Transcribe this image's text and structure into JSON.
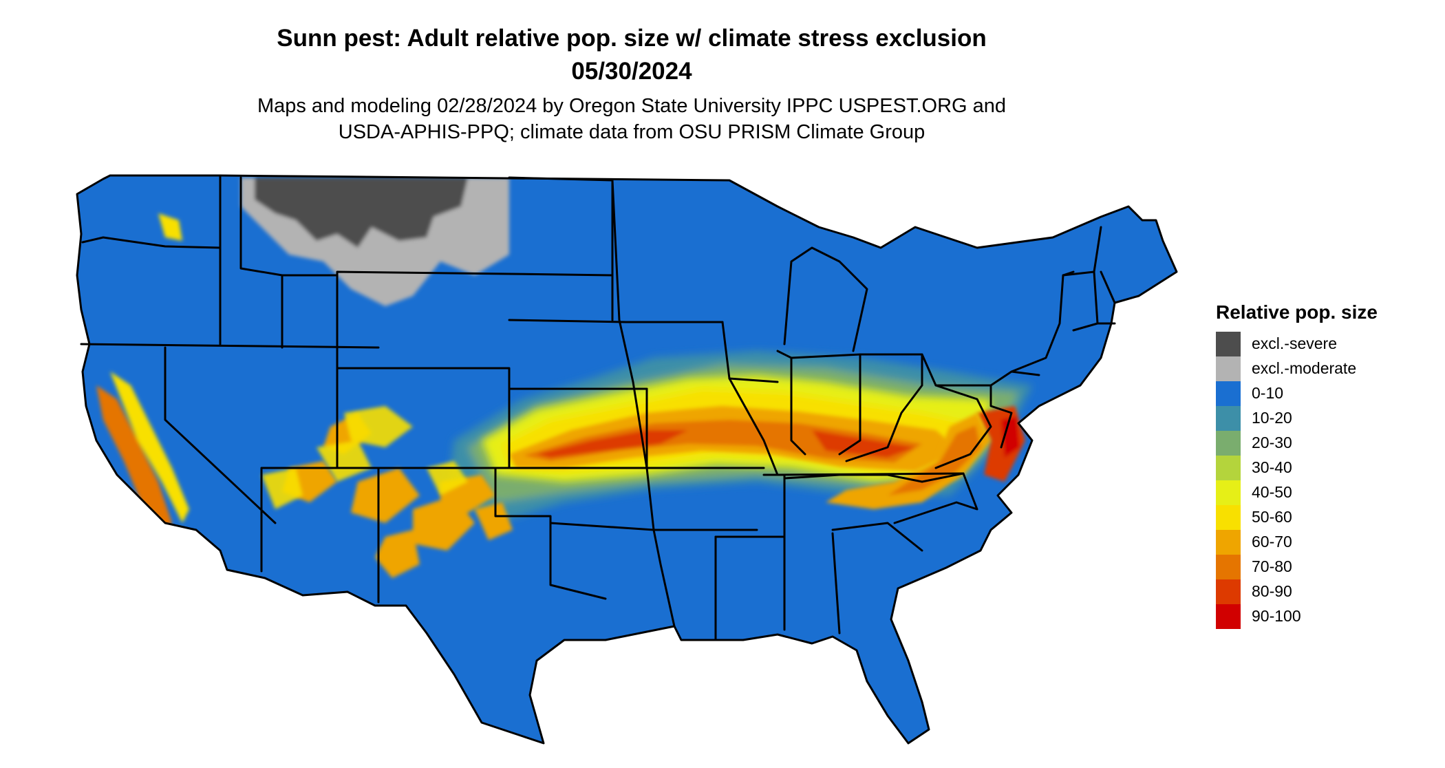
{
  "title": {
    "line1": "Sunn pest: Adult relative pop. size w/ climate stress exclusion",
    "line2": "05/30/2024"
  },
  "subtitle": {
    "line1": "Maps and modeling 02/28/2024 by Oregon State University IPPC USPEST.ORG and",
    "line2": "USDA-APHIS-PPQ; climate data from OSU PRISM Climate Group"
  },
  "legend": {
    "title": "Relative pop. size",
    "items": [
      {
        "label": "excl.-severe",
        "color": "#4d4d4d"
      },
      {
        "label": "excl.-moderate",
        "color": "#b3b3b3"
      },
      {
        "label": "0-10",
        "color": "#1a6fd1"
      },
      {
        "label": "10-20",
        "color": "#3d8fa8"
      },
      {
        "label": "20-30",
        "color": "#7aad6e"
      },
      {
        "label": "30-40",
        "color": "#b4d43c"
      },
      {
        "label": "40-50",
        "color": "#e6ef17"
      },
      {
        "label": "50-60",
        "color": "#f8e000"
      },
      {
        "label": "60-70",
        "color": "#efa500"
      },
      {
        "label": "70-80",
        "color": "#e57500"
      },
      {
        "label": "80-90",
        "color": "#dd3a00"
      },
      {
        "label": "90-100",
        "color": "#d10000"
      }
    ]
  }
}
